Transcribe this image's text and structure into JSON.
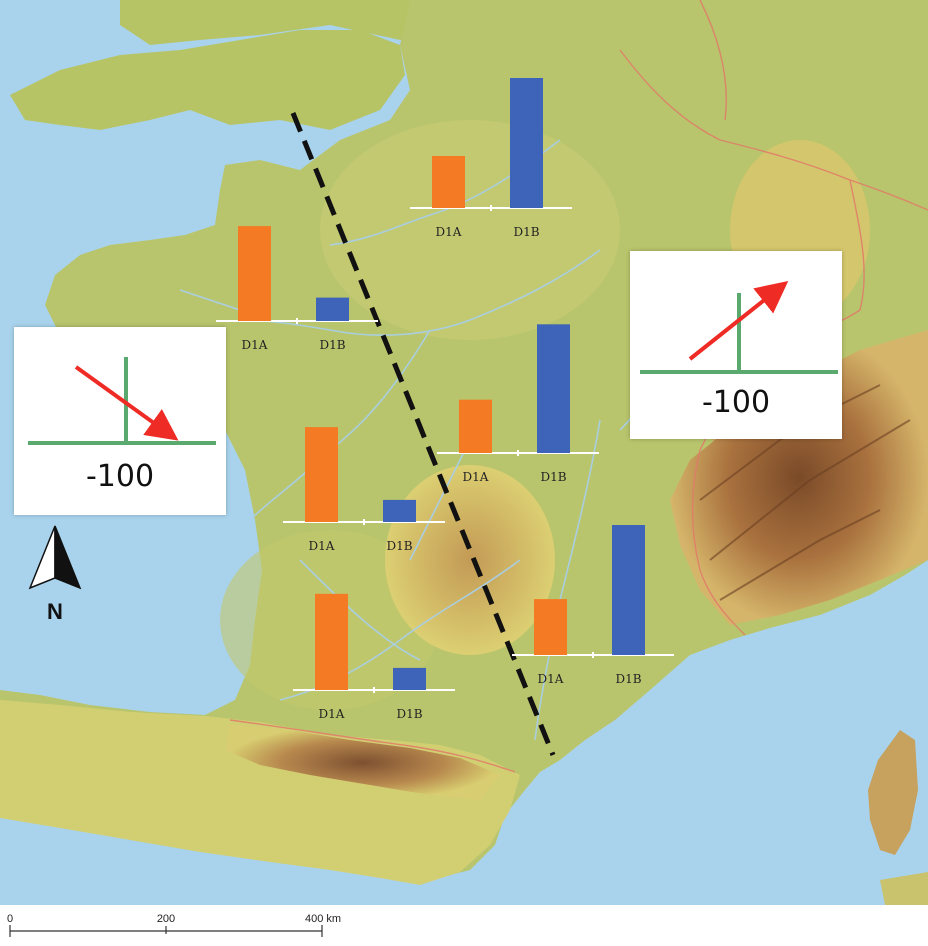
{
  "colors": {
    "sea": "#a9d3ec",
    "land_low": "#b5c56a",
    "land_mid": "#d9cf6e",
    "highland": "#c9a05a",
    "mountain": "#8a5a32",
    "river": "#a9cfe6",
    "border": "#e07a6a",
    "d1a": "#f47a23",
    "d1b": "#3d64b8",
    "arrow": "#ee2b24",
    "axis": "#5aaa70"
  },
  "bar_groups": [
    {
      "name": "north",
      "d1a": 0.4,
      "d1b": 1.0,
      "label_a": "D1A",
      "label_b": "D1B"
    },
    {
      "name": "brittany",
      "d1a": 0.73,
      "d1b": 0.18,
      "label_a": "D1A",
      "label_b": "D1B"
    },
    {
      "name": "east-central",
      "d1a": 0.41,
      "d1b": 0.99,
      "label_a": "D1A",
      "label_b": "D1B"
    },
    {
      "name": "west-central",
      "d1a": 0.73,
      "d1b": 0.17,
      "label_a": "D1A",
      "label_b": "D1B"
    },
    {
      "name": "southeast",
      "d1a": 0.43,
      "d1b": 1.0,
      "label_a": "D1A",
      "label_b": "D1B"
    },
    {
      "name": "southwest",
      "d1a": 0.74,
      "d1b": 0.17,
      "label_a": "D1A",
      "label_b": "D1B"
    }
  ],
  "panels": {
    "west": {
      "value": "-100",
      "arrow_direction": "down-right"
    },
    "east": {
      "value": "-100",
      "arrow_direction": "up-right"
    }
  },
  "north_arrow": {
    "label": "N"
  },
  "scale_bar": {
    "ticks": [
      "0",
      "200",
      "400 km"
    ]
  }
}
